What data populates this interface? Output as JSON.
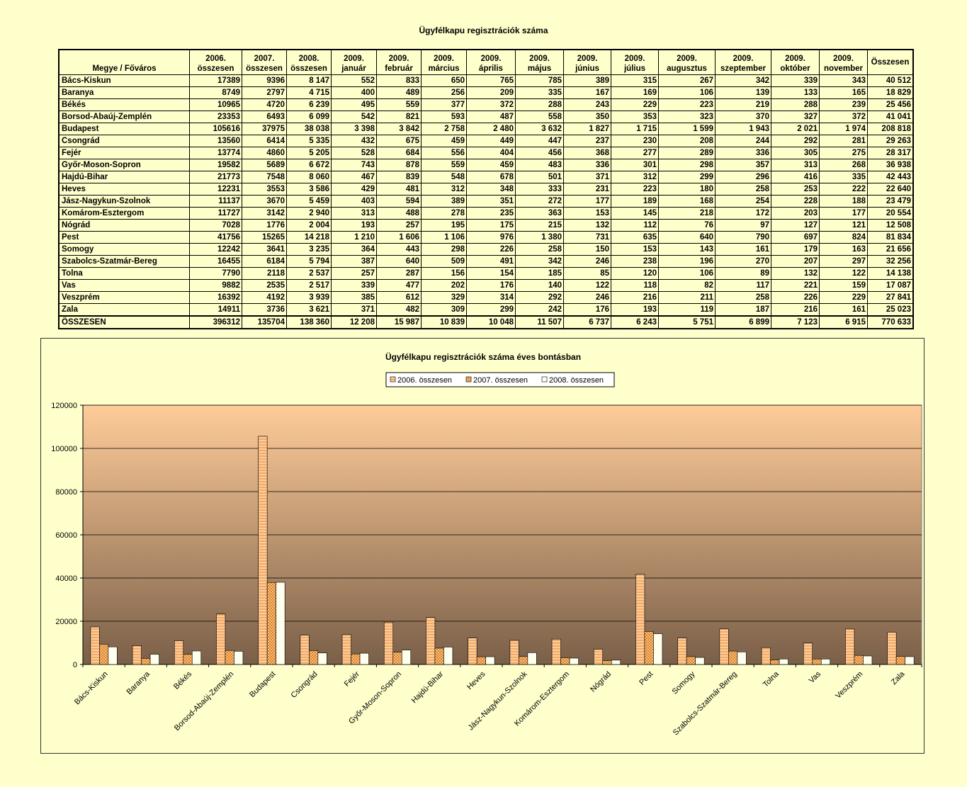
{
  "table": {
    "title": "Ügyfélkapu regisztrációk száma",
    "corner_header": "Megye / Főváros",
    "columns": [
      {
        "top": "2006.",
        "bottom": "összesen"
      },
      {
        "top": "2007.",
        "bottom": "összesen"
      },
      {
        "top": "2008.",
        "bottom": "összesen"
      },
      {
        "top": "2009.",
        "bottom": "január"
      },
      {
        "top": "2009.",
        "bottom": "február"
      },
      {
        "top": "2009.",
        "bottom": "március"
      },
      {
        "top": "2009.",
        "bottom": "április"
      },
      {
        "top": "2009.",
        "bottom": "május"
      },
      {
        "top": "2009.",
        "bottom": "június"
      },
      {
        "top": "2009.",
        "bottom": "július"
      },
      {
        "top": "2009.",
        "bottom": "augusztus"
      },
      {
        "top": "2009.",
        "bottom": "szeptember"
      },
      {
        "top": "2009.",
        "bottom": "október"
      },
      {
        "top": "2009.",
        "bottom": "november"
      },
      {
        "top": "",
        "bottom": "Összesen"
      }
    ],
    "rows": [
      {
        "name": "Bács-Kiskun",
        "values": [
          "17389",
          "9396",
          "8 147",
          "552",
          "833",
          "650",
          "765",
          "785",
          "389",
          "315",
          "267",
          "342",
          "339",
          "343",
          "40 512"
        ]
      },
      {
        "name": "Baranya",
        "values": [
          "8749",
          "2797",
          "4 715",
          "400",
          "489",
          "256",
          "209",
          "335",
          "167",
          "169",
          "106",
          "139",
          "133",
          "165",
          "18 829"
        ]
      },
      {
        "name": "Békés",
        "values": [
          "10965",
          "4720",
          "6 239",
          "495",
          "559",
          "377",
          "372",
          "288",
          "243",
          "229",
          "223",
          "219",
          "288",
          "239",
          "25 456"
        ]
      },
      {
        "name": "Borsod-Abaúj-Zemplén",
        "values": [
          "23353",
          "6493",
          "6 099",
          "542",
          "821",
          "593",
          "487",
          "558",
          "350",
          "353",
          "323",
          "370",
          "327",
          "372",
          "41 041"
        ]
      },
      {
        "name": "Budapest",
        "values": [
          "105616",
          "37975",
          "38 038",
          "3 398",
          "3 842",
          "2 758",
          "2 480",
          "3 632",
          "1 827",
          "1 715",
          "1 599",
          "1 943",
          "2 021",
          "1 974",
          "208 818"
        ]
      },
      {
        "name": "Csongrád",
        "values": [
          "13560",
          "6414",
          "5 335",
          "432",
          "675",
          "459",
          "449",
          "447",
          "237",
          "230",
          "208",
          "244",
          "292",
          "281",
          "29 263"
        ]
      },
      {
        "name": "Fejér",
        "values": [
          "13774",
          "4860",
          "5 205",
          "528",
          "684",
          "556",
          "404",
          "456",
          "368",
          "277",
          "289",
          "336",
          "305",
          "275",
          "28 317"
        ]
      },
      {
        "name": "Győr-Moson-Sopron",
        "values": [
          "19582",
          "5689",
          "6 672",
          "743",
          "878",
          "559",
          "459",
          "483",
          "336",
          "301",
          "298",
          "357",
          "313",
          "268",
          "36 938"
        ]
      },
      {
        "name": "Hajdú-Bihar",
        "values": [
          "21773",
          "7548",
          "8 060",
          "467",
          "839",
          "548",
          "678",
          "501",
          "371",
          "312",
          "299",
          "296",
          "416",
          "335",
          "42 443"
        ]
      },
      {
        "name": "Heves",
        "values": [
          "12231",
          "3553",
          "3 586",
          "429",
          "481",
          "312",
          "348",
          "333",
          "231",
          "223",
          "180",
          "258",
          "253",
          "222",
          "22 640"
        ]
      },
      {
        "name": "Jász-Nagykun-Szolnok",
        "values": [
          "11137",
          "3670",
          "5 459",
          "403",
          "594",
          "389",
          "351",
          "272",
          "177",
          "189",
          "168",
          "254",
          "228",
          "188",
          "23 479"
        ]
      },
      {
        "name": "Komárom-Esztergom",
        "values": [
          "11727",
          "3142",
          "2 940",
          "313",
          "488",
          "278",
          "235",
          "363",
          "153",
          "145",
          "218",
          "172",
          "203",
          "177",
          "20 554"
        ]
      },
      {
        "name": "Nógrád",
        "values": [
          "7028",
          "1776",
          "2 004",
          "193",
          "257",
          "195",
          "175",
          "215",
          "132",
          "112",
          "76",
          "97",
          "127",
          "121",
          "12 508"
        ]
      },
      {
        "name": "Pest",
        "values": [
          "41756",
          "15265",
          "14 218",
          "1 210",
          "1 606",
          "1 106",
          "976",
          "1 380",
          "731",
          "635",
          "640",
          "790",
          "697",
          "824",
          "81 834"
        ]
      },
      {
        "name": "Somogy",
        "values": [
          "12242",
          "3641",
          "3 235",
          "364",
          "443",
          "298",
          "226",
          "258",
          "150",
          "153",
          "143",
          "161",
          "179",
          "163",
          "21 656"
        ]
      },
      {
        "name": "Szabolcs-Szatmár-Bereg",
        "values": [
          "16455",
          "6184",
          "5 794",
          "387",
          "640",
          "509",
          "491",
          "342",
          "246",
          "238",
          "196",
          "270",
          "207",
          "297",
          "32 256"
        ]
      },
      {
        "name": "Tolna",
        "values": [
          "7790",
          "2118",
          "2 537",
          "257",
          "287",
          "156",
          "154",
          "185",
          "85",
          "120",
          "106",
          "89",
          "132",
          "122",
          "14 138"
        ]
      },
      {
        "name": "Vas",
        "values": [
          "9882",
          "2535",
          "2 517",
          "339",
          "477",
          "202",
          "176",
          "140",
          "122",
          "118",
          "82",
          "117",
          "221",
          "159",
          "17 087"
        ]
      },
      {
        "name": "Veszprém",
        "values": [
          "16392",
          "4192",
          "3 939",
          "385",
          "612",
          "329",
          "314",
          "292",
          "246",
          "216",
          "211",
          "258",
          "226",
          "229",
          "27 841"
        ]
      },
      {
        "name": "Zala",
        "values": [
          "14911",
          "3736",
          "3 621",
          "371",
          "482",
          "309",
          "299",
          "242",
          "176",
          "193",
          "119",
          "187",
          "216",
          "161",
          "25 023"
        ]
      }
    ],
    "total": {
      "name": "ÖSSZESEN",
      "values": [
        "396312",
        "135704",
        "138 360",
        "12 208",
        "15 987",
        "10 839",
        "10 048",
        "11 507",
        "6 737",
        "6 243",
        "5 751",
        "6 899",
        "7 123",
        "6 915",
        "770 633"
      ]
    }
  },
  "chart_data": {
    "type": "bar",
    "title": "Ügyfélkapu regisztrációk száma éves bontásban",
    "categories": [
      "Bács-Kiskun",
      "Baranya",
      "Békés",
      "Borsod-Abaúj-Zemplén",
      "Budapest",
      "Csongrád",
      "Fejér",
      "Győr-Moson-Sopron",
      "Hajdú-Bihar",
      "Heves",
      "Jász-Nagykun-Szolnok",
      "Komárom-Esztergom",
      "Nógrád",
      "Pest",
      "Somogy",
      "Szabolcs-Szatmár-Bereg",
      "Tolna",
      "Vas",
      "Veszprém",
      "Zala"
    ],
    "series": [
      {
        "name": "2006. összesen",
        "values": [
          17389,
          8749,
          10965,
          23353,
          105616,
          13560,
          13774,
          19582,
          21773,
          12231,
          11137,
          11727,
          7028,
          41756,
          12242,
          16455,
          7790,
          9882,
          16392,
          14911
        ],
        "color": "#ffcc99"
      },
      {
        "name": "2007. összesen",
        "values": [
          9396,
          2797,
          4720,
          6493,
          37975,
          6414,
          4860,
          5689,
          7548,
          3553,
          3670,
          3142,
          1776,
          15265,
          3641,
          6184,
          2118,
          2535,
          4192,
          3736
        ],
        "color": "#f5b060"
      },
      {
        "name": "2008. összesen",
        "values": [
          8147,
          4715,
          6239,
          6099,
          38038,
          5335,
          5205,
          6672,
          8060,
          3586,
          5459,
          2940,
          2004,
          14218,
          3235,
          5794,
          2537,
          2517,
          3939,
          3621
        ],
        "color": "#ffffe8"
      }
    ],
    "ylim": [
      0,
      120000
    ],
    "yticks": [
      0,
      20000,
      40000,
      60000,
      80000,
      100000,
      120000
    ],
    "legend_position": "top",
    "grid": true,
    "plot_gradient": {
      "top": "#ffcc99",
      "bottom": "#7a5f48"
    }
  }
}
